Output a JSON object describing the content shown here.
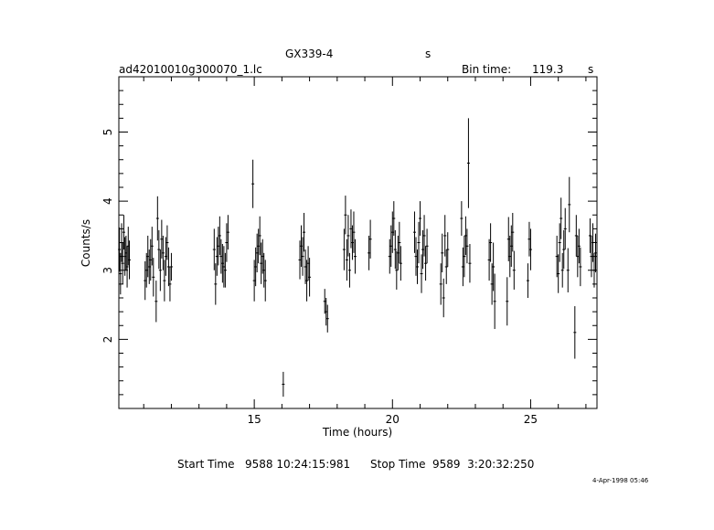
{
  "header": {
    "object": "GX339-4",
    "unit_tag": "s",
    "filename": "ad42010010g300070_1.lc",
    "bin_time_label": "Bin time:",
    "bin_time_value": "119.3",
    "bin_time_unit": "s"
  },
  "footer": {
    "start_label": "Start Time",
    "start_value": "9588 10:24:15:981",
    "stop_label": "Stop Time",
    "stop_value": "9589  3:20:32:250",
    "timestamp": "4-Apr-1998 05:46"
  },
  "chart_data": {
    "type": "scatter",
    "xlabel": "Time (hours)",
    "ylabel": "Counts/s",
    "xlim": [
      10.1,
      27.4
    ],
    "ylim": [
      1.0,
      5.8
    ],
    "xticks": [
      15,
      20,
      25
    ],
    "yticks": [
      2,
      3,
      4,
      5
    ],
    "errorbars": true,
    "points": [
      {
        "x": 10.12,
        "y": 3.3,
        "e": 0.32
      },
      {
        "x": 10.16,
        "y": 2.95,
        "e": 0.3
      },
      {
        "x": 10.2,
        "y": 3.4,
        "e": 0.28
      },
      {
        "x": 10.24,
        "y": 3.1,
        "e": 0.3
      },
      {
        "x": 10.28,
        "y": 3.55,
        "e": 0.25
      },
      {
        "x": 10.32,
        "y": 3.2,
        "e": 0.28
      },
      {
        "x": 10.36,
        "y": 3.25,
        "e": 0.25
      },
      {
        "x": 10.4,
        "y": 3.05,
        "e": 0.3
      },
      {
        "x": 10.44,
        "y": 3.35,
        "e": 0.28
      },
      {
        "x": 10.48,
        "y": 3.15,
        "e": 0.28
      },
      {
        "x": 11.05,
        "y": 2.85,
        "e": 0.28
      },
      {
        "x": 11.1,
        "y": 3.0,
        "e": 0.25
      },
      {
        "x": 11.15,
        "y": 3.2,
        "e": 0.3
      },
      {
        "x": 11.2,
        "y": 3.05,
        "e": 0.25
      },
      {
        "x": 11.25,
        "y": 3.15,
        "e": 0.3
      },
      {
        "x": 11.3,
        "y": 3.35,
        "e": 0.28
      },
      {
        "x": 11.35,
        "y": 2.9,
        "e": 0.28
      },
      {
        "x": 11.45,
        "y": 2.55,
        "e": 0.3
      },
      {
        "x": 11.5,
        "y": 3.75,
        "e": 0.32
      },
      {
        "x": 11.55,
        "y": 3.3,
        "e": 0.28
      },
      {
        "x": 11.6,
        "y": 3.0,
        "e": 0.3
      },
      {
        "x": 11.65,
        "y": 3.45,
        "e": 0.28
      },
      {
        "x": 11.7,
        "y": 3.25,
        "e": 0.25
      },
      {
        "x": 11.75,
        "y": 2.85,
        "e": 0.3
      },
      {
        "x": 11.8,
        "y": 3.2,
        "e": 0.28
      },
      {
        "x": 11.85,
        "y": 3.4,
        "e": 0.25
      },
      {
        "x": 11.9,
        "y": 3.05,
        "e": 0.28
      },
      {
        "x": 11.95,
        "y": 2.8,
        "e": 0.25
      },
      {
        "x": 12.0,
        "y": 3.05,
        "e": 0.2
      },
      {
        "x": 13.55,
        "y": 3.3,
        "e": 0.3
      },
      {
        "x": 13.6,
        "y": 2.8,
        "e": 0.3
      },
      {
        "x": 13.65,
        "y": 3.2,
        "e": 0.28
      },
      {
        "x": 13.7,
        "y": 3.35,
        "e": 0.28
      },
      {
        "x": 13.75,
        "y": 3.5,
        "e": 0.28
      },
      {
        "x": 13.8,
        "y": 3.2,
        "e": 0.25
      },
      {
        "x": 13.85,
        "y": 3.1,
        "e": 0.28
      },
      {
        "x": 13.9,
        "y": 3.05,
        "e": 0.3
      },
      {
        "x": 13.95,
        "y": 3.0,
        "e": 0.25
      },
      {
        "x": 14.0,
        "y": 3.4,
        "e": 0.28
      },
      {
        "x": 14.05,
        "y": 3.55,
        "e": 0.25
      },
      {
        "x": 14.95,
        "y": 4.25,
        "e": 0.35
      },
      {
        "x": 15.0,
        "y": 2.85,
        "e": 0.3
      },
      {
        "x": 15.05,
        "y": 3.05,
        "e": 0.28
      },
      {
        "x": 15.1,
        "y": 3.25,
        "e": 0.28
      },
      {
        "x": 15.15,
        "y": 3.35,
        "e": 0.25
      },
      {
        "x": 15.2,
        "y": 3.5,
        "e": 0.28
      },
      {
        "x": 15.25,
        "y": 3.1,
        "e": 0.3
      },
      {
        "x": 15.3,
        "y": 3.2,
        "e": 0.25
      },
      {
        "x": 15.35,
        "y": 3.0,
        "e": 0.25
      },
      {
        "x": 15.4,
        "y": 2.85,
        "e": 0.3
      },
      {
        "x": 16.05,
        "y": 1.35,
        "e": 0.18
      },
      {
        "x": 16.65,
        "y": 3.15,
        "e": 0.28
      },
      {
        "x": 16.7,
        "y": 3.35,
        "e": 0.3
      },
      {
        "x": 16.75,
        "y": 3.2,
        "e": 0.28
      },
      {
        "x": 16.8,
        "y": 3.55,
        "e": 0.28
      },
      {
        "x": 16.85,
        "y": 3.05,
        "e": 0.25
      },
      {
        "x": 16.9,
        "y": 2.85,
        "e": 0.3
      },
      {
        "x": 16.95,
        "y": 3.1,
        "e": 0.25
      },
      {
        "x": 17.0,
        "y": 2.9,
        "e": 0.28
      },
      {
        "x": 17.55,
        "y": 2.55,
        "e": 0.18
      },
      {
        "x": 17.6,
        "y": 2.4,
        "e": 0.2
      },
      {
        "x": 17.65,
        "y": 2.3,
        "e": 0.2
      },
      {
        "x": 18.25,
        "y": 3.3,
        "e": 0.3
      },
      {
        "x": 18.3,
        "y": 3.8,
        "e": 0.28
      },
      {
        "x": 18.35,
        "y": 3.15,
        "e": 0.3
      },
      {
        "x": 18.4,
        "y": 3.5,
        "e": 0.3
      },
      {
        "x": 18.45,
        "y": 3.0,
        "e": 0.25
      },
      {
        "x": 18.5,
        "y": 3.6,
        "e": 0.28
      },
      {
        "x": 18.55,
        "y": 3.4,
        "e": 0.25
      },
      {
        "x": 18.6,
        "y": 3.55,
        "e": 0.3
      },
      {
        "x": 18.65,
        "y": 3.2,
        "e": 0.25
      },
      {
        "x": 19.15,
        "y": 3.25,
        "e": 0.25
      },
      {
        "x": 19.2,
        "y": 3.45,
        "e": 0.28
      },
      {
        "x": 19.9,
        "y": 3.2,
        "e": 0.25
      },
      {
        "x": 19.95,
        "y": 3.35,
        "e": 0.3
      },
      {
        "x": 20.0,
        "y": 3.55,
        "e": 0.3
      },
      {
        "x": 20.05,
        "y": 3.75,
        "e": 0.25
      },
      {
        "x": 20.1,
        "y": 3.3,
        "e": 0.28
      },
      {
        "x": 20.15,
        "y": 3.0,
        "e": 0.28
      },
      {
        "x": 20.2,
        "y": 3.25,
        "e": 0.25
      },
      {
        "x": 20.25,
        "y": 3.4,
        "e": 0.3
      },
      {
        "x": 20.3,
        "y": 3.1,
        "e": 0.25
      },
      {
        "x": 20.8,
        "y": 3.55,
        "e": 0.3
      },
      {
        "x": 20.85,
        "y": 3.2,
        "e": 0.28
      },
      {
        "x": 20.9,
        "y": 3.05,
        "e": 0.25
      },
      {
        "x": 20.95,
        "y": 3.4,
        "e": 0.3
      },
      {
        "x": 21.0,
        "y": 3.75,
        "e": 0.25
      },
      {
        "x": 21.05,
        "y": 2.95,
        "e": 0.28
      },
      {
        "x": 21.1,
        "y": 3.3,
        "e": 0.28
      },
      {
        "x": 21.15,
        "y": 3.5,
        "e": 0.3
      },
      {
        "x": 21.2,
        "y": 3.1,
        "e": 0.25
      },
      {
        "x": 21.25,
        "y": 3.35,
        "e": 0.25
      },
      {
        "x": 21.75,
        "y": 2.8,
        "e": 0.3
      },
      {
        "x": 21.8,
        "y": 3.25,
        "e": 0.28
      },
      {
        "x": 21.85,
        "y": 2.6,
        "e": 0.28
      },
      {
        "x": 21.9,
        "y": 3.5,
        "e": 0.3
      },
      {
        "x": 21.95,
        "y": 3.05,
        "e": 0.25
      },
      {
        "x": 22.0,
        "y": 3.3,
        "e": 0.25
      },
      {
        "x": 22.5,
        "y": 3.75,
        "e": 0.25
      },
      {
        "x": 22.55,
        "y": 3.05,
        "e": 0.28
      },
      {
        "x": 22.6,
        "y": 3.2,
        "e": 0.3
      },
      {
        "x": 22.65,
        "y": 3.5,
        "e": 0.28
      },
      {
        "x": 22.7,
        "y": 3.35,
        "e": 0.25
      },
      {
        "x": 22.75,
        "y": 4.55,
        "e": 0.65
      },
      {
        "x": 22.8,
        "y": 3.1,
        "e": 0.28
      },
      {
        "x": 23.5,
        "y": 3.15,
        "e": 0.3
      },
      {
        "x": 23.55,
        "y": 3.4,
        "e": 0.28
      },
      {
        "x": 23.6,
        "y": 2.8,
        "e": 0.3
      },
      {
        "x": 23.65,
        "y": 3.05,
        "e": 0.35
      },
      {
        "x": 23.7,
        "y": 2.55,
        "e": 0.4
      },
      {
        "x": 24.15,
        "y": 2.55,
        "e": 0.35
      },
      {
        "x": 24.2,
        "y": 3.45,
        "e": 0.32
      },
      {
        "x": 24.25,
        "y": 3.2,
        "e": 0.3
      },
      {
        "x": 24.3,
        "y": 3.35,
        "e": 0.3
      },
      {
        "x": 24.35,
        "y": 3.55,
        "e": 0.28
      },
      {
        "x": 24.4,
        "y": 3.0,
        "e": 0.28
      },
      {
        "x": 24.9,
        "y": 2.85,
        "e": 0.25
      },
      {
        "x": 24.95,
        "y": 3.45,
        "e": 0.25
      },
      {
        "x": 25.0,
        "y": 3.3,
        "e": 0.3
      },
      {
        "x": 25.95,
        "y": 3.2,
        "e": 0.3
      },
      {
        "x": 26.0,
        "y": 2.95,
        "e": 0.28
      },
      {
        "x": 26.05,
        "y": 3.4,
        "e": 0.28
      },
      {
        "x": 26.1,
        "y": 3.75,
        "e": 0.3
      },
      {
        "x": 26.15,
        "y": 3.0,
        "e": 0.25
      },
      {
        "x": 26.2,
        "y": 3.3,
        "e": 0.28
      },
      {
        "x": 26.25,
        "y": 3.6,
        "e": 0.3
      },
      {
        "x": 26.35,
        "y": 3.0,
        "e": 0.32
      },
      {
        "x": 26.4,
        "y": 3.95,
        "e": 0.4
      },
      {
        "x": 26.6,
        "y": 2.1,
        "e": 0.38
      },
      {
        "x": 26.65,
        "y": 3.5,
        "e": 0.3
      },
      {
        "x": 26.7,
        "y": 3.2,
        "e": 0.3
      },
      {
        "x": 26.75,
        "y": 3.35,
        "e": 0.25
      },
      {
        "x": 26.8,
        "y": 3.05,
        "e": 0.28
      },
      {
        "x": 27.15,
        "y": 3.5,
        "e": 0.25
      },
      {
        "x": 27.2,
        "y": 3.2,
        "e": 0.3
      },
      {
        "x": 27.25,
        "y": 3.4,
        "e": 0.28
      },
      {
        "x": 27.3,
        "y": 3.0,
        "e": 0.25
      },
      {
        "x": 27.35,
        "y": 3.25,
        "e": 0.28
      }
    ]
  }
}
